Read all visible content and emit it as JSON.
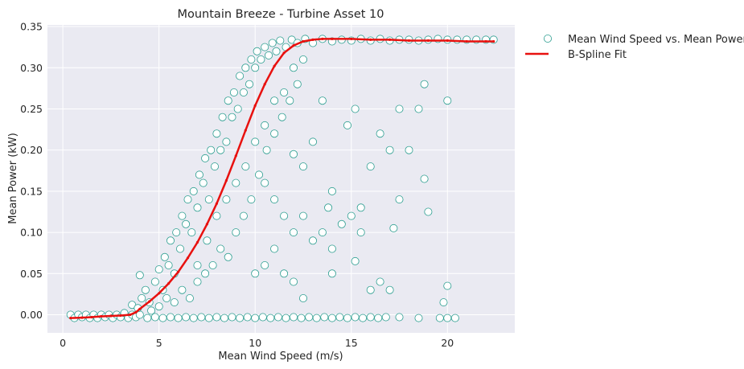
{
  "chart_data": {
    "type": "scatter",
    "title": "Mountain Breeze - Turbine Asset 10",
    "xlabel": "Mean Wind Speed (m/s)",
    "ylabel": "Mean Power (kW)",
    "xlim": [
      -0.8,
      23.5
    ],
    "ylim": [
      -0.022,
      0.352
    ],
    "xticks": [
      0,
      5,
      10,
      15,
      20
    ],
    "yticks": [
      0.0,
      0.05,
      0.1,
      0.15,
      0.2,
      0.25,
      0.3,
      0.35
    ],
    "xtick_labels": [
      "0",
      "5",
      "10",
      "15",
      "20"
    ],
    "ytick_labels": [
      "0.00",
      "0.05",
      "0.10",
      "0.15",
      "0.20",
      "0.25",
      "0.30",
      "0.35"
    ],
    "grid": true,
    "legend_position": "outside-top-right",
    "colors": {
      "background": "#eaeaf2",
      "grid": "#ffffff",
      "scatter_edge": "#2a9d8f",
      "fit_line": "#e8110f"
    },
    "series": [
      {
        "name": "Mean Wind Speed vs. Mean Power",
        "kind": "scatter",
        "points": [
          [
            0.4,
            0.0
          ],
          [
            0.6,
            -0.004
          ],
          [
            0.8,
            0.0
          ],
          [
            1.0,
            -0.003
          ],
          [
            1.2,
            0.0
          ],
          [
            1.4,
            -0.004
          ],
          [
            1.6,
            0.0
          ],
          [
            1.8,
            -0.004
          ],
          [
            2.0,
            0.0
          ],
          [
            2.2,
            -0.003
          ],
          [
            2.4,
            0.0
          ],
          [
            2.6,
            -0.004
          ],
          [
            2.8,
            0.0
          ],
          [
            3.0,
            -0.003
          ],
          [
            3.2,
            0.002
          ],
          [
            3.4,
            -0.004
          ],
          [
            3.6,
            0.0
          ],
          [
            3.8,
            -0.003
          ],
          [
            4.0,
            0.0
          ],
          [
            4.4,
            -0.004
          ],
          [
            4.8,
            -0.003
          ],
          [
            5.2,
            -0.004
          ],
          [
            5.6,
            -0.003
          ],
          [
            6.0,
            -0.004
          ],
          [
            6.4,
            -0.003
          ],
          [
            6.8,
            -0.004
          ],
          [
            7.2,
            -0.003
          ],
          [
            7.6,
            -0.004
          ],
          [
            8.0,
            -0.003
          ],
          [
            8.4,
            -0.004
          ],
          [
            8.8,
            -0.003
          ],
          [
            9.2,
            -0.004
          ],
          [
            9.6,
            -0.003
          ],
          [
            10.0,
            -0.004
          ],
          [
            10.4,
            -0.003
          ],
          [
            10.8,
            -0.004
          ],
          [
            11.2,
            -0.003
          ],
          [
            11.6,
            -0.004
          ],
          [
            12.0,
            -0.003
          ],
          [
            12.4,
            -0.004
          ],
          [
            12.8,
            -0.003
          ],
          [
            13.2,
            -0.004
          ],
          [
            13.6,
            -0.003
          ],
          [
            14.0,
            -0.004
          ],
          [
            14.4,
            -0.003
          ],
          [
            14.8,
            -0.004
          ],
          [
            15.2,
            -0.003
          ],
          [
            15.6,
            -0.004
          ],
          [
            16.0,
            -0.003
          ],
          [
            16.4,
            -0.004
          ],
          [
            16.8,
            -0.003
          ],
          [
            17.5,
            -0.003
          ],
          [
            18.5,
            -0.004
          ],
          [
            19.6,
            -0.004
          ],
          [
            20.0,
            -0.004
          ],
          [
            20.4,
            -0.004
          ],
          [
            3.6,
            0.012
          ],
          [
            3.9,
            0.008
          ],
          [
            4.1,
            0.02
          ],
          [
            4.3,
            0.03
          ],
          [
            4.0,
            0.048
          ],
          [
            4.5,
            0.015
          ],
          [
            4.8,
            0.04
          ],
          [
            5.0,
            0.055
          ],
          [
            5.2,
            0.03
          ],
          [
            5.3,
            0.07
          ],
          [
            5.5,
            0.06
          ],
          [
            5.6,
            0.09
          ],
          [
            5.8,
            0.05
          ],
          [
            5.9,
            0.1
          ],
          [
            6.1,
            0.08
          ],
          [
            6.2,
            0.12
          ],
          [
            6.4,
            0.11
          ],
          [
            6.5,
            0.14
          ],
          [
            6.7,
            0.1
          ],
          [
            6.8,
            0.15
          ],
          [
            7.0,
            0.13
          ],
          [
            7.1,
            0.17
          ],
          [
            7.3,
            0.16
          ],
          [
            7.4,
            0.19
          ],
          [
            7.6,
            0.14
          ],
          [
            7.7,
            0.2
          ],
          [
            7.9,
            0.18
          ],
          [
            8.0,
            0.22
          ],
          [
            8.2,
            0.2
          ],
          [
            8.3,
            0.24
          ],
          [
            8.5,
            0.21
          ],
          [
            8.6,
            0.26
          ],
          [
            8.8,
            0.24
          ],
          [
            8.9,
            0.27
          ],
          [
            9.1,
            0.25
          ],
          [
            9.2,
            0.29
          ],
          [
            9.4,
            0.27
          ],
          [
            9.5,
            0.3
          ],
          [
            9.7,
            0.28
          ],
          [
            9.8,
            0.31
          ],
          [
            10.0,
            0.3
          ],
          [
            10.1,
            0.32
          ],
          [
            10.3,
            0.31
          ],
          [
            10.5,
            0.325
          ],
          [
            10.7,
            0.315
          ],
          [
            10.9,
            0.33
          ],
          [
            11.1,
            0.32
          ],
          [
            11.3,
            0.333
          ],
          [
            11.6,
            0.325
          ],
          [
            11.9,
            0.334
          ],
          [
            12.2,
            0.33
          ],
          [
            12.6,
            0.335
          ],
          [
            13.0,
            0.33
          ],
          [
            13.5,
            0.335
          ],
          [
            14.0,
            0.332
          ],
          [
            14.5,
            0.334
          ],
          [
            15.0,
            0.333
          ],
          [
            15.5,
            0.335
          ],
          [
            16.0,
            0.333
          ],
          [
            16.5,
            0.335
          ],
          [
            17.0,
            0.333
          ],
          [
            17.5,
            0.334
          ],
          [
            18.0,
            0.334
          ],
          [
            18.5,
            0.333
          ],
          [
            19.0,
            0.334
          ],
          [
            19.5,
            0.335
          ],
          [
            20.0,
            0.334
          ],
          [
            20.5,
            0.334
          ],
          [
            21.0,
            0.334
          ],
          [
            21.5,
            0.334
          ],
          [
            22.0,
            0.334
          ],
          [
            22.4,
            0.334
          ],
          [
            4.6,
            0.005
          ],
          [
            5.0,
            0.01
          ],
          [
            5.4,
            0.02
          ],
          [
            5.8,
            0.015
          ],
          [
            6.2,
            0.03
          ],
          [
            6.6,
            0.02
          ],
          [
            7.0,
            0.04
          ],
          [
            7.4,
            0.05
          ],
          [
            7.8,
            0.06
          ],
          [
            8.2,
            0.08
          ],
          [
            8.6,
            0.07
          ],
          [
            9.0,
            0.1
          ],
          [
            9.4,
            0.12
          ],
          [
            9.8,
            0.14
          ],
          [
            10.2,
            0.17
          ],
          [
            10.6,
            0.2
          ],
          [
            11.0,
            0.22
          ],
          [
            11.4,
            0.24
          ],
          [
            11.8,
            0.26
          ],
          [
            12.2,
            0.28
          ],
          [
            7.0,
            0.06
          ],
          [
            7.5,
            0.09
          ],
          [
            8.0,
            0.12
          ],
          [
            8.5,
            0.14
          ],
          [
            9.0,
            0.16
          ],
          [
            9.5,
            0.18
          ],
          [
            10.0,
            0.21
          ],
          [
            10.5,
            0.23
          ],
          [
            11.0,
            0.26
          ],
          [
            11.5,
            0.27
          ],
          [
            12.0,
            0.3
          ],
          [
            12.5,
            0.31
          ],
          [
            10.0,
            0.05
          ],
          [
            10.5,
            0.06
          ],
          [
            11.0,
            0.08
          ],
          [
            11.5,
            0.05
          ],
          [
            12.0,
            0.1
          ],
          [
            12.5,
            0.12
          ],
          [
            13.0,
            0.09
          ],
          [
            13.5,
            0.1
          ],
          [
            14.0,
            0.08
          ],
          [
            14.5,
            0.11
          ],
          [
            15.0,
            0.12
          ],
          [
            15.5,
            0.1
          ],
          [
            16.0,
            0.18
          ],
          [
            16.5,
            0.22
          ],
          [
            17.0,
            0.2
          ],
          [
            17.5,
            0.25
          ],
          [
            18.0,
            0.2
          ],
          [
            18.5,
            0.25
          ],
          [
            18.8,
            0.165
          ],
          [
            19.0,
            0.125
          ],
          [
            18.8,
            0.28
          ],
          [
            20.0,
            0.26
          ],
          [
            19.8,
            0.015
          ],
          [
            20.0,
            0.035
          ],
          [
            12.0,
            0.04
          ],
          [
            12.5,
            0.02
          ],
          [
            14.0,
            0.05
          ],
          [
            15.2,
            0.065
          ],
          [
            16.0,
            0.03
          ],
          [
            17.0,
            0.03
          ],
          [
            16.5,
            0.04
          ],
          [
            17.2,
            0.105
          ],
          [
            17.5,
            0.14
          ],
          [
            15.5,
            0.13
          ],
          [
            14.8,
            0.23
          ],
          [
            15.2,
            0.25
          ],
          [
            13.0,
            0.21
          ],
          [
            12.5,
            0.18
          ],
          [
            14.0,
            0.15
          ],
          [
            13.8,
            0.13
          ],
          [
            11.0,
            0.14
          ],
          [
            11.5,
            0.12
          ],
          [
            10.5,
            0.16
          ],
          [
            12.0,
            0.195
          ],
          [
            13.5,
            0.26
          ]
        ]
      },
      {
        "name": "B-Spline Fit",
        "kind": "line",
        "points": [
          [
            0.4,
            -0.004
          ],
          [
            1.0,
            -0.0035
          ],
          [
            1.5,
            -0.003
          ],
          [
            2.0,
            -0.002
          ],
          [
            2.5,
            -0.0015
          ],
          [
            3.0,
            -0.001
          ],
          [
            3.5,
            0.0
          ],
          [
            3.8,
            0.003
          ],
          [
            4.0,
            0.007
          ],
          [
            4.5,
            0.016
          ],
          [
            5.0,
            0.026
          ],
          [
            5.5,
            0.038
          ],
          [
            6.0,
            0.052
          ],
          [
            6.5,
            0.069
          ],
          [
            7.0,
            0.088
          ],
          [
            7.5,
            0.11
          ],
          [
            8.0,
            0.135
          ],
          [
            8.5,
            0.163
          ],
          [
            9.0,
            0.193
          ],
          [
            9.5,
            0.224
          ],
          [
            10.0,
            0.254
          ],
          [
            10.5,
            0.28
          ],
          [
            11.0,
            0.302
          ],
          [
            11.5,
            0.318
          ],
          [
            12.0,
            0.327
          ],
          [
            12.5,
            0.332
          ],
          [
            13.0,
            0.334
          ],
          [
            13.5,
            0.335
          ],
          [
            14.0,
            0.335
          ],
          [
            15.0,
            0.335
          ],
          [
            16.0,
            0.334
          ],
          [
            17.0,
            0.334
          ],
          [
            18.0,
            0.333
          ],
          [
            19.0,
            0.333
          ],
          [
            20.0,
            0.333
          ],
          [
            21.0,
            0.332
          ],
          [
            22.0,
            0.332
          ],
          [
            22.4,
            0.332
          ]
        ]
      }
    ]
  }
}
